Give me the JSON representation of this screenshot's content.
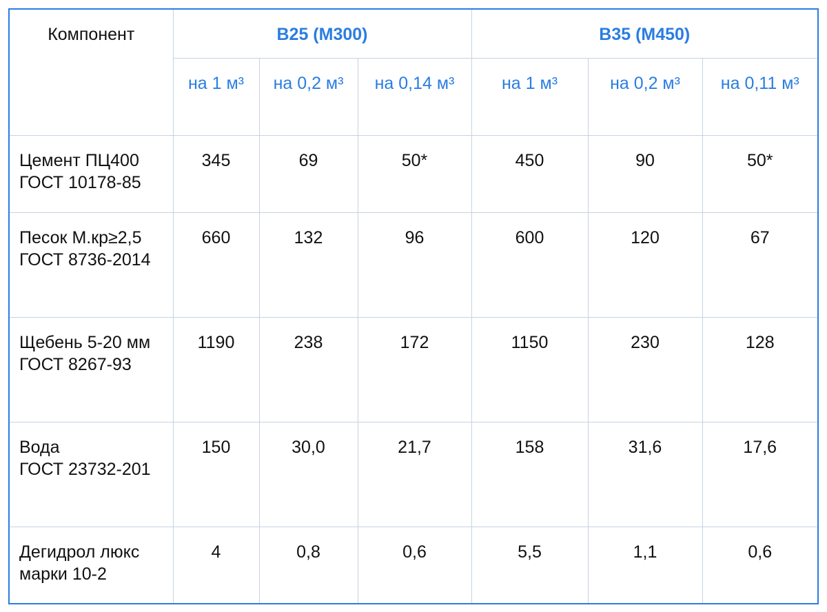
{
  "table": {
    "header": {
      "component": "Компонент",
      "groups": [
        {
          "title": "B25 (M300)",
          "subcolumns": [
            "на 1 м³",
            "на 0,2 м³",
            "на 0,14 м³"
          ]
        },
        {
          "title": "B35 (M450)",
          "subcolumns": [
            "на 1 м³",
            "на 0,2 м³",
            "на 0,11 м³"
          ]
        }
      ]
    },
    "rows": [
      {
        "component": "Цемент ПЦ400\nГОСТ 10178-85",
        "values": [
          "345",
          "69",
          "50*",
          "450",
          "90",
          "50*"
        ]
      },
      {
        "component": "Песок М.кр≥2,5\nГОСТ 8736-2014",
        "values": [
          "660",
          "132",
          "96",
          "600",
          "120",
          "67"
        ]
      },
      {
        "component": "Щебень 5-20 мм\nГОСТ 8267-93",
        "values": [
          "1190",
          "238",
          "172",
          "1150",
          "230",
          "128"
        ]
      },
      {
        "component": "Вода\nГОСТ 23732-201",
        "values": [
          "150",
          "30,0",
          "21,7",
          "158",
          "31,6",
          "17,6"
        ]
      },
      {
        "component": "Дегидрол люкс марки 10-2",
        "values": [
          "4",
          "0,8",
          "0,6",
          "5,5",
          "1,1",
          "0,6"
        ]
      }
    ]
  }
}
